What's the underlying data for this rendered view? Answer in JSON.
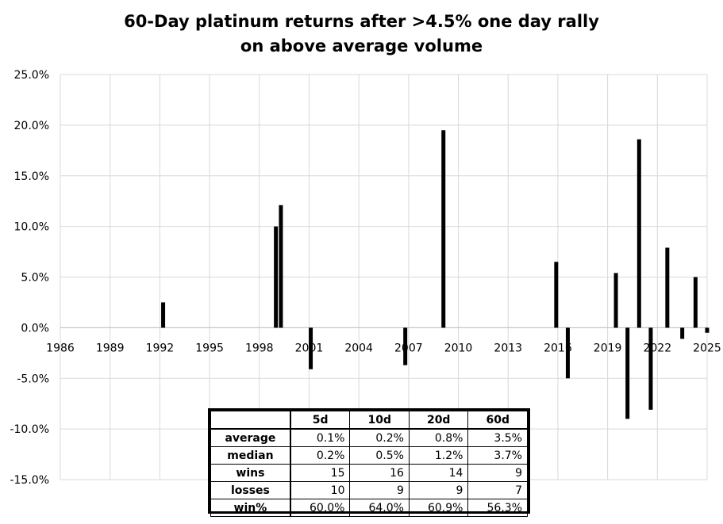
{
  "chart_data": {
    "type": "bar",
    "title_lines": [
      "60-Day platinum returns after >4.5% one day rally",
      "on above average volume"
    ],
    "x_ticks": [
      "1986",
      "1989",
      "1992",
      "1995",
      "1998",
      "2001",
      "2004",
      "2007",
      "2010",
      "2013",
      "2016",
      "2019",
      "2022",
      "2025"
    ],
    "x_range": [
      1986,
      2025
    ],
    "y_ticks": [
      "25.0%",
      "20.0%",
      "15.0%",
      "10.0%",
      "5.0%",
      "0.0%",
      "-5.0%",
      "-10.0%",
      "-15.0%"
    ],
    "ylim": [
      -15,
      25
    ],
    "y_unit": "%",
    "grid": true,
    "bar_color": "#000000",
    "points": [
      {
        "x": 1992.2,
        "y": 2.5
      },
      {
        "x": 1999.0,
        "y": 10.0
      },
      {
        "x": 1999.3,
        "y": 12.1
      },
      {
        "x": 2001.1,
        "y": -4.1
      },
      {
        "x": 2006.8,
        "y": -3.7
      },
      {
        "x": 2009.1,
        "y": 19.5
      },
      {
        "x": 2015.9,
        "y": 6.5
      },
      {
        "x": 2016.6,
        "y": -5.0
      },
      {
        "x": 2019.5,
        "y": 5.4
      },
      {
        "x": 2020.2,
        "y": -9.0
      },
      {
        "x": 2020.9,
        "y": 18.6
      },
      {
        "x": 2021.6,
        "y": -8.1
      },
      {
        "x": 2022.6,
        "y": 7.9
      },
      {
        "x": 2023.5,
        "y": -1.1
      },
      {
        "x": 2024.3,
        "y": 5.0
      },
      {
        "x": 2025.0,
        "y": -0.5
      }
    ]
  },
  "stats_table": {
    "columns": [
      "",
      "5d",
      "10d",
      "20d",
      "60d"
    ],
    "rows": [
      {
        "label": "average",
        "values": [
          "0.1%",
          "0.2%",
          "0.8%",
          "3.5%"
        ]
      },
      {
        "label": "median",
        "values": [
          "0.2%",
          "0.5%",
          "1.2%",
          "3.7%"
        ]
      },
      {
        "label": "wins",
        "values": [
          "15",
          "16",
          "14",
          "9"
        ]
      },
      {
        "label": "losses",
        "values": [
          "10",
          "9",
          "9",
          "7"
        ]
      },
      {
        "label": "win%",
        "values": [
          "60.0%",
          "64.0%",
          "60.9%",
          "56.3%"
        ]
      }
    ]
  }
}
